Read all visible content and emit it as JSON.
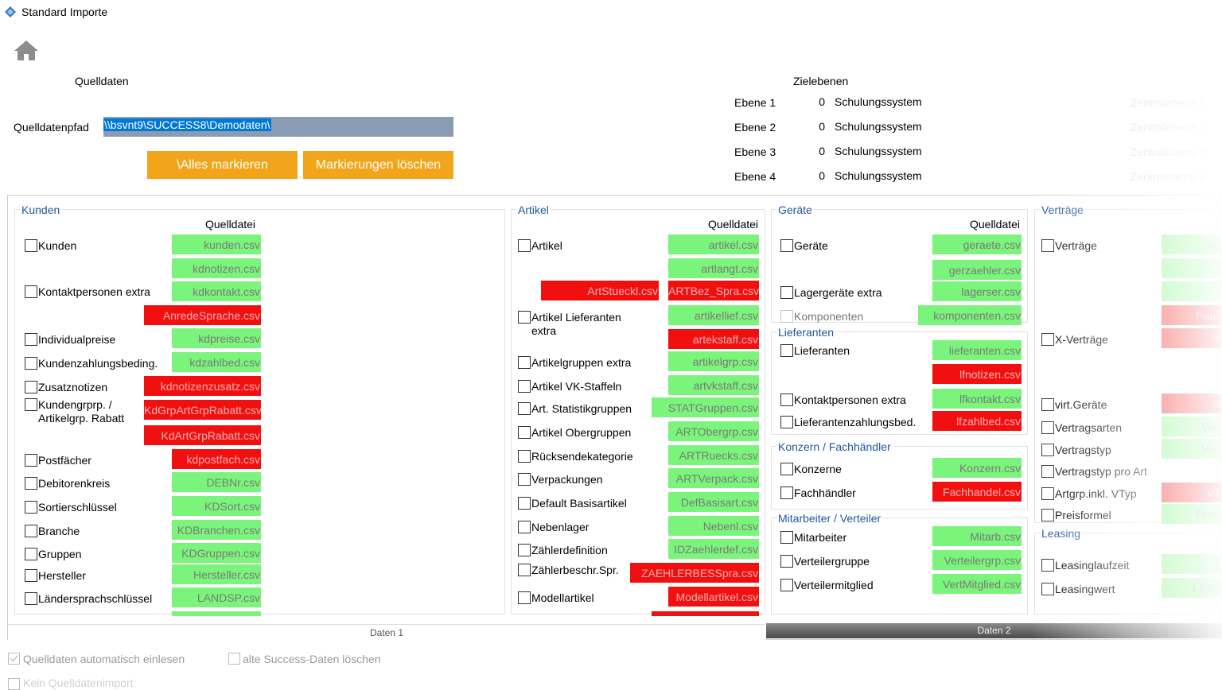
{
  "window": {
    "title": "Standard Importe"
  },
  "source": {
    "heading": "Quelldaten",
    "path_label": "Quelldatenpfad",
    "path_value": "\\\\bsvnt9\\SUCCESS8\\Demodaten\\",
    "mark_all": "\\Alles markieren",
    "clear_marks": "Markierungen löschen"
  },
  "target": {
    "heading": "Zielebenen",
    "levels": [
      {
        "label": "Ebene 1",
        "num": "0",
        "value": "Schulungssystem",
        "zentral": "Zentralebene 1"
      },
      {
        "label": "Ebene 2",
        "num": "0",
        "value": "Schulungssystem",
        "zentral": "Zentralebene 2"
      },
      {
        "label": "Ebene 3",
        "num": "0",
        "value": "Schulungssystem",
        "zentral": "Zentralebene 3"
      },
      {
        "label": "Ebene 4",
        "num": "0",
        "value": "Schulungssystem",
        "zentral": "Zentralebene 4"
      }
    ]
  },
  "groups": {
    "kunden": {
      "title": "Kunden",
      "qhdr": "Quelldatei",
      "items": [
        {
          "label": "Kunden",
          "files": [
            {
              "name": "kunden.csv",
              "status": "green"
            },
            {
              "name": "kdnotizen.csv",
              "status": "green"
            }
          ]
        },
        {
          "label": "Kontaktpersonen extra",
          "files": [
            {
              "name": "kdkontakt.csv",
              "status": "green"
            },
            {
              "name": "AnredeSprache.csv",
              "status": "red"
            }
          ]
        },
        {
          "label": "Individualpreise",
          "files": [
            {
              "name": "kdpreise.csv",
              "status": "green"
            }
          ]
        },
        {
          "label": "Kundenzahlungsbeding.",
          "files": [
            {
              "name": "kdzahlbed.csv",
              "status": "green"
            }
          ]
        },
        {
          "label": "Zusatznotizen",
          "files": [
            {
              "name": "kdnotizenzusatz.csv",
              "status": "red"
            }
          ]
        },
        {
          "label": "Kundengrprp. /",
          "label2": "Artikelgrp. Rabatt",
          "files": [
            {
              "name": "KdGrpArtGrpRabatt.csv",
              "status": "red"
            },
            {
              "name": "KdArtGrpRabatt.csv",
              "status": "red"
            }
          ]
        },
        {
          "label": "Postfächer",
          "files": [
            {
              "name": "kdpostfach.csv",
              "status": "red"
            }
          ]
        },
        {
          "label": "Debitorenkreis",
          "files": [
            {
              "name": "DEBNr.csv",
              "status": "green"
            }
          ]
        },
        {
          "label": "Sortierschlüssel",
          "files": [
            {
              "name": "KDSort.csv",
              "status": "green"
            }
          ]
        },
        {
          "label": "Branche",
          "files": [
            {
              "name": "KDBranchen.csv",
              "status": "green"
            }
          ]
        },
        {
          "label": "Gruppen",
          "files": [
            {
              "name": "KDGruppen.csv",
              "status": "green"
            }
          ]
        },
        {
          "label": "Hersteller",
          "files": [
            {
              "name": "Hersteller.csv",
              "status": "green"
            }
          ]
        },
        {
          "label": "Ländersprachschlüssel",
          "files": [
            {
              "name": "LANDSP.csv",
              "status": "green"
            }
          ]
        }
      ]
    },
    "artikel": {
      "title": "Artikel",
      "qhdr": "Quelldatei",
      "items": [
        {
          "label": "Artikel",
          "files": [
            {
              "name": "artikel.csv",
              "status": "green"
            },
            {
              "name": "artlangt.csv",
              "status": "green"
            },
            {
              "name": "ArtStueckl.csv",
              "status": "red"
            },
            {
              "name": "ARTBez_Spra.csv",
              "status": "red"
            }
          ]
        },
        {
          "label": "Artikel Lieferanten",
          "label2": "extra",
          "files": [
            {
              "name": "artikellief.csv",
              "status": "green"
            },
            {
              "name": "artekstaff.csv",
              "status": "red"
            }
          ]
        },
        {
          "label": "Artikelgruppen extra",
          "files": [
            {
              "name": "artikelgrp.csv",
              "status": "green"
            }
          ]
        },
        {
          "label": "Artikel VK-Staffeln",
          "files": [
            {
              "name": "artvkstaff.csv",
              "status": "green"
            }
          ]
        },
        {
          "label": "Art. Statistikgruppen",
          "files": [
            {
              "name": "STATGruppen.csv",
              "status": "green"
            }
          ]
        },
        {
          "label": "Artikel Obergruppen",
          "files": [
            {
              "name": "ARTObergrp.csv",
              "status": "green"
            }
          ]
        },
        {
          "label": "Rücksendekategorie",
          "files": [
            {
              "name": "ARTRuecks.csv",
              "status": "green"
            }
          ]
        },
        {
          "label": "Verpackungen",
          "files": [
            {
              "name": "ARTVerpack.csv",
              "status": "green"
            }
          ]
        },
        {
          "label": "Default Basisartikel",
          "files": [
            {
              "name": "DefBasisart.csv",
              "status": "green"
            }
          ]
        },
        {
          "label": "Nebenlager",
          "files": [
            {
              "name": "Nebenl.csv",
              "status": "green"
            }
          ]
        },
        {
          "label": "Zählerdefinition",
          "files": [
            {
              "name": "IDZaehlerdef.csv",
              "status": "green"
            }
          ]
        },
        {
          "label": "Zählerbeschr.Spr.",
          "files": [
            {
              "name": "ZAEHLERBESSpra.csv",
              "status": "red"
            }
          ]
        },
        {
          "label": "Modellartikel",
          "files": [
            {
              "name": "Modellartikel.csv",
              "status": "red"
            }
          ]
        }
      ]
    },
    "geraete": {
      "title": "Geräte",
      "qhdr": "Quelldatei",
      "items": [
        {
          "label": "Geräte",
          "files": [
            {
              "name": "geraete.csv",
              "status": "green"
            },
            {
              "name": "gerzaehler.csv",
              "status": "green"
            }
          ]
        },
        {
          "label": "Lagergeräte extra",
          "files": [
            {
              "name": "lagerser.csv",
              "status": "green"
            }
          ]
        },
        {
          "label": "Komponenten",
          "disabled": true,
          "files": [
            {
              "name": "komponenten.csv",
              "status": "green"
            }
          ]
        }
      ]
    },
    "lieferanten": {
      "title": "Lieferanten",
      "items": [
        {
          "label": "Lieferanten",
          "files": [
            {
              "name": "lieferanten.csv",
              "status": "green"
            },
            {
              "name": "lfnotizen.csv",
              "status": "red"
            }
          ]
        },
        {
          "label": "Kontaktpersonen extra",
          "files": [
            {
              "name": "lfkontakt.csv",
              "status": "green"
            }
          ]
        },
        {
          "label": "Lieferantenzahlungsbed.",
          "files": [
            {
              "name": "lfzahlbed.csv",
              "status": "red"
            }
          ]
        }
      ]
    },
    "konzern": {
      "title": "Konzern / Fachhändler",
      "items": [
        {
          "label": "Konzerne",
          "files": [
            {
              "name": "Konzern.csv",
              "status": "green"
            }
          ]
        },
        {
          "label": "Fachhändler",
          "files": [
            {
              "name": "Fachhandel.csv",
              "status": "red"
            }
          ]
        }
      ]
    },
    "mitarbeiter": {
      "title": "Mitarbeiter / Verteiler",
      "items": [
        {
          "label": "Mitarbeiter",
          "files": [
            {
              "name": "Mitarb.csv",
              "status": "green"
            }
          ]
        },
        {
          "label": "Verteilergruppe",
          "files": [
            {
              "name": "Verteilergrp.csv",
              "status": "green"
            }
          ]
        },
        {
          "label": "Verteilermitglied",
          "files": [
            {
              "name": "VertMitglied.csv",
              "status": "green"
            }
          ]
        }
      ]
    },
    "vertraege": {
      "title": "Verträge",
      "items": [
        {
          "label": "Verträge",
          "files": [
            {
              "name": "ver",
              "status": "green"
            }
          ]
        },
        {
          "label": "X-Verträge",
          "files": [
            {
              "name": "X",
              "status": "red"
            }
          ]
        },
        {
          "label": "virt.Geräte",
          "files": [
            {
              "name": "vi",
              "status": "red"
            }
          ]
        },
        {
          "label": "Vertragsarten",
          "files": [
            {
              "name": "Vert",
              "status": "green"
            }
          ]
        },
        {
          "label": "Vertragstyp",
          "files": [
            {
              "name": "Vert",
              "status": "green"
            }
          ]
        },
        {
          "label": "Vertragstyp pro Art",
          "files": []
        },
        {
          "label": "Artgrp.inkl. VTyp",
          "files": [
            {
              "name": "VT",
              "status": "red"
            }
          ]
        },
        {
          "label": "Preisformel",
          "files": [
            {
              "name": "Preis",
              "status": "green"
            }
          ]
        }
      ],
      "extra_file": "Paus"
    },
    "leasing": {
      "title": "Leasing",
      "items": [
        {
          "label": "Leasinglaufzeit",
          "files": [
            {
              "name": "L",
              "status": "green"
            }
          ]
        },
        {
          "label": "Leasingwert",
          "files": [
            {
              "name": "LEAS",
              "status": "green"
            }
          ]
        }
      ]
    }
  },
  "tabs": {
    "tab1": "Daten 1",
    "tab2": "Daten 2"
  },
  "options": {
    "auto_read": "Quelldaten automatisch einlesen",
    "delete_old": "alte Success-Daten löschen",
    "no_source": "Kein Quelldatenimport"
  },
  "colors": {
    "accent": "#f2a51a",
    "green": "#7bf47b",
    "red": "#f01010",
    "group_title": "#1f57a0"
  }
}
